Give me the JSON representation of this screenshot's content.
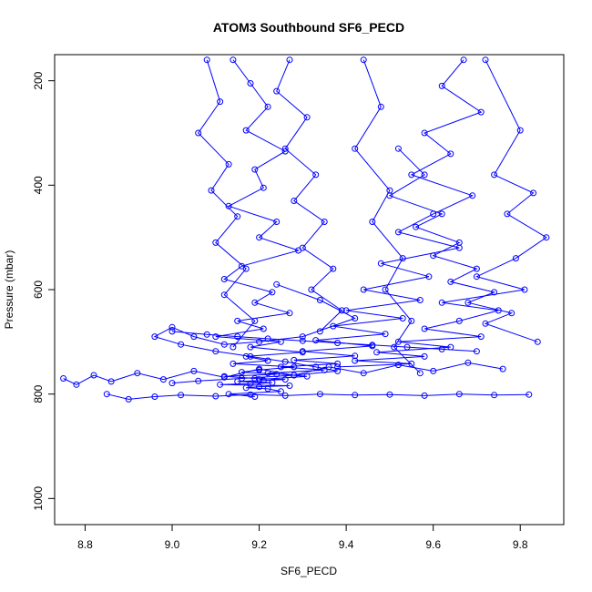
{
  "chart_data": {
    "type": "line",
    "title": "ATOM3 Southbound SF6_PECD",
    "xlabel": "SF6_PECD",
    "ylabel": "Pressure (mbar)",
    "xlim": [
      8.73,
      9.9
    ],
    "ylim": [
      1050,
      150
    ],
    "y_reversed": true,
    "xticks": [
      "8.8",
      "9.0",
      "9.2",
      "9.4",
      "9.6",
      "9.8"
    ],
    "yticks": [
      "200",
      "400",
      "600",
      "800",
      "1000"
    ],
    "marker": "open-circle",
    "line_color": "#0000ff",
    "grid": false,
    "legend": "none",
    "series": [
      {
        "x": [
          9.14,
          9.18,
          9.22,
          9.17,
          9.26,
          9.19,
          9.21,
          9.13,
          9.24,
          9.2,
          9.29,
          9.16,
          9.12,
          9.23,
          9.19,
          9.27,
          9.15,
          9.21,
          9.1,
          9.25,
          9.18,
          9.3,
          9.17,
          9.22,
          9.14,
          9.28,
          9.2,
          9.16,
          9.24,
          9.12,
          9.19,
          9.26,
          9.21,
          9.15,
          9.23,
          9.18,
          9.11,
          9.27,
          9.2,
          9.17,
          9.22,
          9.25,
          9.13,
          9.19
        ],
        "y": [
          160,
          205,
          250,
          295,
          335,
          370,
          405,
          440,
          470,
          500,
          525,
          555,
          580,
          605,
          625,
          645,
          660,
          675,
          690,
          700,
          710,
          720,
          728,
          736,
          742,
          748,
          754,
          758,
          762,
          766,
          770,
          772,
          774,
          776,
          778,
          780,
          782,
          784,
          786,
          788,
          790,
          795,
          800,
          805
        ]
      },
      {
        "x": [
          9.67,
          9.62,
          9.71,
          9.58,
          9.64,
          9.55,
          9.69,
          9.6,
          9.52,
          9.66,
          9.48,
          9.59,
          9.44,
          9.57,
          9.4,
          9.53,
          9.37,
          9.49,
          9.33,
          9.46,
          9.3,
          9.42,
          9.28,
          9.38,
          9.25,
          9.35,
          9.22,
          9.31,
          9.2
        ],
        "y": [
          160,
          210,
          260,
          300,
          340,
          380,
          420,
          455,
          490,
          520,
          550,
          575,
          600,
          620,
          640,
          655,
          670,
          685,
          697,
          708,
          718,
          727,
          735,
          742,
          748,
          754,
          760,
          766,
          772
        ]
      },
      {
        "x": [
          9.24,
          9.34,
          9.42,
          9.3,
          9.2,
          9.12,
          9.05,
          9.0,
          8.96,
          9.02,
          9.1,
          9.18,
          9.26,
          9.33,
          9.38,
          9.28,
          9.16,
          9.06,
          9.0
        ],
        "y": [
          590,
          620,
          655,
          690,
          700,
          705,
          690,
          672,
          690,
          705,
          718,
          728,
          738,
          748,
          756,
          764,
          770,
          775,
          779
        ]
      },
      {
        "x": [
          9.72,
          9.8,
          9.74,
          9.83,
          9.77,
          9.86,
          9.79,
          9.7,
          9.81,
          9.62,
          9.75,
          9.66,
          9.58,
          9.71,
          9.52,
          9.64,
          9.47,
          9.58,
          9.42,
          9.55,
          9.38
        ],
        "y": [
          160,
          295,
          380,
          415,
          455,
          500,
          540,
          575,
          600,
          625,
          640,
          660,
          675,
          690,
          700,
          710,
          720,
          728,
          736,
          742,
          748
        ]
      },
      {
        "x": [
          8.75,
          8.78,
          8.82,
          8.86,
          8.92,
          8.98,
          9.05,
          9.12,
          9.2,
          9.28,
          9.36,
          9.44,
          9.52,
          9.6,
          9.68,
          9.76
        ],
        "y": [
          770,
          782,
          764,
          776,
          760,
          772,
          756,
          768,
          752,
          764,
          748,
          760,
          744,
          756,
          740,
          752
        ]
      },
      {
        "x": [
          8.85,
          8.9,
          8.96,
          9.02,
          9.1,
          9.18,
          9.26,
          9.34,
          9.42,
          9.5,
          9.58,
          9.66,
          9.74,
          9.82
        ],
        "y": [
          800,
          810,
          805,
          802,
          804,
          801,
          803,
          800,
          802,
          801,
          803,
          800,
          802,
          801
        ]
      },
      {
        "x": [
          9.0,
          9.08,
          9.15,
          9.22,
          9.3,
          9.38,
          9.46,
          9.54,
          9.62,
          9.7
        ],
        "y": [
          680,
          686,
          690,
          694,
          698,
          702,
          706,
          710,
          714,
          718
        ]
      },
      {
        "x": [
          9.52,
          9.58,
          9.5,
          9.62,
          9.56,
          9.66,
          9.6,
          9.7,
          9.64,
          9.74,
          9.68,
          9.78,
          9.72,
          9.84
        ],
        "y": [
          330,
          380,
          420,
          455,
          480,
          510,
          535,
          560,
          585,
          605,
          625,
          645,
          665,
          700
        ]
      },
      {
        "x": [
          9.27,
          9.24,
          9.31,
          9.26,
          9.33,
          9.28,
          9.35,
          9.3,
          9.37,
          9.32,
          9.39,
          9.34
        ],
        "y": [
          160,
          220,
          270,
          330,
          380,
          430,
          470,
          520,
          560,
          600,
          640,
          680
        ]
      },
      {
        "x": [
          9.08,
          9.11,
          9.06,
          9.13,
          9.09,
          9.15,
          9.1,
          9.17,
          9.12,
          9.19,
          9.14
        ],
        "y": [
          160,
          240,
          300,
          360,
          410,
          460,
          510,
          560,
          610,
          660,
          710
        ]
      },
      {
        "x": [
          9.44,
          9.48,
          9.42,
          9.5,
          9.46,
          9.53,
          9.49,
          9.55,
          9.51,
          9.57
        ],
        "y": [
          160,
          250,
          330,
          410,
          470,
          540,
          600,
          660,
          710,
          760
        ]
      }
    ]
  }
}
